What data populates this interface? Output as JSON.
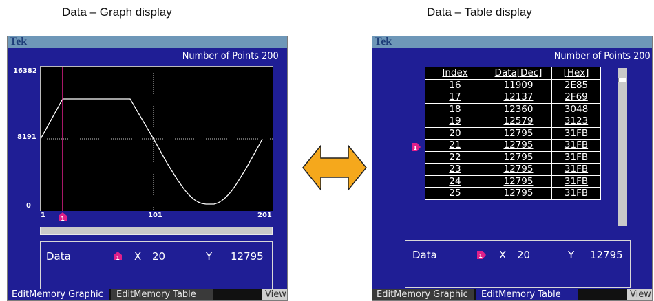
{
  "captions": {
    "graph": "Data – Graph display",
    "table": "Data – Table display"
  },
  "left_screen": {
    "brand": "Tek",
    "number_of_points_label": "Number of Points",
    "number_of_points": "200",
    "y_labels": [
      "16382",
      "8191",
      "0"
    ],
    "x_labels": [
      "1",
      "101",
      "201"
    ],
    "marker_label": "1",
    "info": {
      "data_label": "Data",
      "x_label": "X",
      "x_value": "20",
      "y_label": "Y",
      "y_value": "12795"
    },
    "tabs": {
      "graphic": "EditMemory Graphic",
      "table": "EditMemory Table",
      "view": "View"
    }
  },
  "right_screen": {
    "brand": "Tek",
    "number_of_points_label": "Number of Points",
    "number_of_points": "200",
    "table": {
      "headers": [
        "Index",
        "Data[Dec]",
        "[Hex]"
      ],
      "rows": [
        [
          "16",
          "11909",
          "2E85"
        ],
        [
          "17",
          "12137",
          "2F69"
        ],
        [
          "18",
          "12360",
          "3048"
        ],
        [
          "19",
          "12579",
          "3123"
        ],
        [
          "20",
          "12795",
          "31FB"
        ],
        [
          "21",
          "12795",
          "31FB"
        ],
        [
          "22",
          "12795",
          "31FB"
        ],
        [
          "23",
          "12795",
          "31FB"
        ],
        [
          "24",
          "12795",
          "31FB"
        ],
        [
          "25",
          "12795",
          "31FB"
        ]
      ]
    },
    "marker_label": "1",
    "info": {
      "data_label": "Data",
      "x_label": "X",
      "x_value": "20",
      "y_label": "Y",
      "y_value": "12795"
    },
    "tabs": {
      "graphic": "EditMemory Graphic",
      "table": "EditMemory Table",
      "view": "View"
    }
  },
  "colors": {
    "screen_bg": "#1f1e95",
    "cursor": "#e0208a",
    "arrow_fill": "#f5a81c",
    "title_bar": "#6e97b8"
  },
  "icons": {
    "marker": "pink-marker-1-icon",
    "arrow": "double-headed-arrow-icon"
  }
}
